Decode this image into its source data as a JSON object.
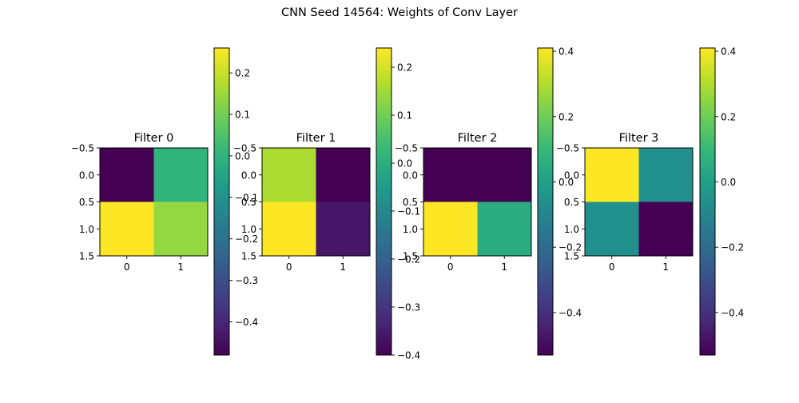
{
  "figure": {
    "title": "CNN Seed 14564: Weights of Conv Layer"
  },
  "colormap": [
    "#440154",
    "#482878",
    "#3e4989",
    "#31688e",
    "#26828e",
    "#1f9e89",
    "#35b779",
    "#6ece58",
    "#b5de2b",
    "#fde725"
  ],
  "chart_data": [
    {
      "type": "heatmap",
      "title": "Filter 0",
      "z": [
        [
          -0.48,
          0.0
        ],
        [
          0.26,
          0.14
        ]
      ],
      "vmin": -0.48,
      "vmax": 0.26,
      "xticks": [
        0,
        1
      ],
      "yticks": [
        -0.5,
        0.0,
        0.5,
        1.0,
        1.5
      ],
      "xticklabels": [
        "0",
        "1"
      ],
      "yticklabels": [
        "−0.5",
        "0.0",
        "0.5",
        "1.0",
        "1.5"
      ],
      "colorbar_ticks": [
        0.2,
        0.1,
        0.0,
        -0.1,
        -0.2,
        -0.3,
        -0.4
      ],
      "colorbar_ticklabels": [
        "0.2",
        "0.1",
        "0.0",
        "−0.1",
        "−0.2",
        "−0.3",
        "−0.4"
      ]
    },
    {
      "type": "heatmap",
      "title": "Filter 1",
      "z": [
        [
          0.16,
          -0.4
        ],
        [
          0.24,
          -0.36
        ]
      ],
      "vmin": -0.4,
      "vmax": 0.24,
      "xticks": [
        0,
        1
      ],
      "yticks": [
        -0.5,
        0.0,
        0.5,
        1.0,
        1.5
      ],
      "xticklabels": [
        "0",
        "1"
      ],
      "yticklabels": [
        "−0.5",
        "0.0",
        "0.5",
        "1.0",
        "1.5"
      ],
      "colorbar_ticks": [
        0.2,
        0.1,
        0.0,
        -0.1,
        -0.2,
        -0.3,
        -0.4
      ],
      "colorbar_ticklabels": [
        "0.2",
        "0.1",
        "0.0",
        "−0.1",
        "−0.2",
        "−0.3",
        "−0.4"
      ]
    },
    {
      "type": "heatmap",
      "title": "Filter 2",
      "z": [
        [
          -0.53,
          -0.53
        ],
        [
          0.41,
          0.05
        ]
      ],
      "vmin": -0.53,
      "vmax": 0.41,
      "xticks": [
        0,
        1
      ],
      "yticks": [
        -0.5,
        0.0,
        0.5,
        1.0,
        1.5
      ],
      "xticklabels": [
        "0",
        "1"
      ],
      "yticklabels": [
        "−0.5",
        "0.0",
        "0.5",
        "1.0",
        "1.5"
      ],
      "colorbar_ticks": [
        0.4,
        0.2,
        0.0,
        -0.2,
        -0.4
      ],
      "colorbar_ticklabels": [
        "0.4",
        "0.2",
        "0.0",
        "−0.2",
        "−0.4"
      ]
    },
    {
      "type": "heatmap",
      "title": "Filter 3",
      "z": [
        [
          0.41,
          -0.06
        ],
        [
          -0.06,
          -0.53
        ]
      ],
      "vmin": -0.53,
      "vmax": 0.41,
      "xticks": [
        0,
        1
      ],
      "yticks": [
        -0.5,
        0.0,
        0.5,
        1.0,
        1.5
      ],
      "xticklabels": [
        "0",
        "1"
      ],
      "yticklabels": [
        "−0.5",
        "0.0",
        "0.5",
        "1.0",
        "1.5"
      ],
      "colorbar_ticks": [
        0.4,
        0.2,
        0.0,
        -0.2,
        -0.4
      ],
      "colorbar_ticklabels": [
        "0.4",
        "0.2",
        "0.0",
        "−0.2",
        "−0.4"
      ]
    }
  ]
}
